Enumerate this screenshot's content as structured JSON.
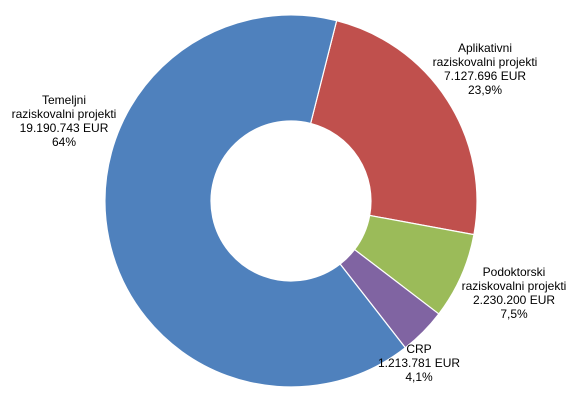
{
  "chart_data": {
    "type": "pie",
    "variant": "donut",
    "start_angle_deg": 14.2,
    "direction": "clockwise",
    "hole_ratio": 0.43,
    "legend": "none",
    "slices": [
      {
        "label_lines": [
          "Aplikativni",
          "raziskovalni projekti",
          "7.127.696 EUR",
          "23,9%"
        ],
        "value": 7127696,
        "percent_label": "23,9%",
        "color": "#C0504D"
      },
      {
        "label_lines": [
          "Podoktorski",
          "raziskovalni projekti",
          "2.230.200 EUR",
          "7,5%"
        ],
        "value": 2230200,
        "percent_label": "7,5%",
        "color": "#9BBB59"
      },
      {
        "label_lines": [
          "CRP",
          "1.213.781 EUR",
          "4,1%"
        ],
        "value": 1213781,
        "percent_label": "4,1%",
        "color": "#8064A2"
      },
      {
        "label_lines": [
          "Temeljni",
          "raziskovalni projekti",
          "19.190.743 EUR",
          "64%"
        ],
        "value": 19190743,
        "percent_label": "64%",
        "color": "#4F81BD"
      }
    ]
  }
}
